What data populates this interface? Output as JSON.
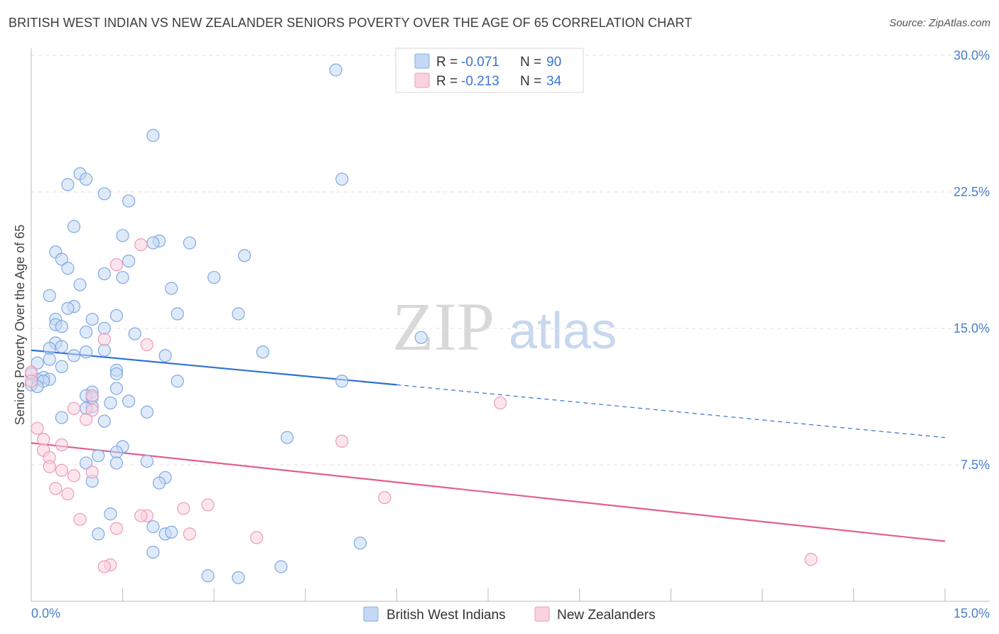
{
  "header": {
    "title": "BRITISH WEST INDIAN VS NEW ZEALANDER SENIORS POVERTY OVER THE AGE OF 65 CORRELATION CHART",
    "source": "Source: ZipAtlas.com"
  },
  "watermark": {
    "zip": "ZIP",
    "atlas": "atlas"
  },
  "chart_data": {
    "type": "scatter",
    "ylabel": "Seniors Poverty Over the Age of 65",
    "xlim": [
      0,
      15
    ],
    "ylim": [
      0,
      30
    ],
    "x_tick_labels": [
      "0.0%",
      "15.0%"
    ],
    "y_ticks": [
      7.5,
      15.0,
      22.5,
      30.0
    ],
    "y_tick_labels": [
      "7.5%",
      "15.0%",
      "22.5%",
      "30.0%"
    ],
    "stats": [
      {
        "r_label": "R =",
        "r": "-0.071",
        "n_label": "N =",
        "n": "90"
      },
      {
        "r_label": "R =",
        "r": "-0.213",
        "n_label": "N =",
        "n": "34"
      }
    ],
    "series": [
      {
        "name": "British West Indians",
        "color": "#7fa9e3",
        "fill": "#c5d9f4",
        "line_color": "#2f72d0",
        "trend": {
          "x0": 0,
          "y0": 13.8,
          "x1": 6,
          "y1": 11.9,
          "dash_x1": 15,
          "dash_y1": 9.0
        },
        "points": [
          [
            5.0,
            29.2
          ],
          [
            2.0,
            25.6
          ],
          [
            0.8,
            23.5
          ],
          [
            0.6,
            22.9
          ],
          [
            0.9,
            23.2
          ],
          [
            5.1,
            23.2
          ],
          [
            1.2,
            22.4
          ],
          [
            1.6,
            22.0
          ],
          [
            0.7,
            20.6
          ],
          [
            1.5,
            20.1
          ],
          [
            2.1,
            19.8
          ],
          [
            2.0,
            19.7
          ],
          [
            2.6,
            19.7
          ],
          [
            0.4,
            19.2
          ],
          [
            0.5,
            18.8
          ],
          [
            3.5,
            19.0
          ],
          [
            1.6,
            18.7
          ],
          [
            0.6,
            18.3
          ],
          [
            1.2,
            18.0
          ],
          [
            1.5,
            17.8
          ],
          [
            3.0,
            17.8
          ],
          [
            0.8,
            17.4
          ],
          [
            2.3,
            17.2
          ],
          [
            0.3,
            16.8
          ],
          [
            0.7,
            16.2
          ],
          [
            0.6,
            16.1
          ],
          [
            3.4,
            15.8
          ],
          [
            2.4,
            15.8
          ],
          [
            1.4,
            15.7
          ],
          [
            1.0,
            15.5
          ],
          [
            0.4,
            15.5
          ],
          [
            0.4,
            15.2
          ],
          [
            0.5,
            15.1
          ],
          [
            1.2,
            15.0
          ],
          [
            0.9,
            14.8
          ],
          [
            1.7,
            14.7
          ],
          [
            6.4,
            14.5
          ],
          [
            0.4,
            14.2
          ],
          [
            0.5,
            14.0
          ],
          [
            0.3,
            13.9
          ],
          [
            0.9,
            13.7
          ],
          [
            1.2,
            13.8
          ],
          [
            3.8,
            13.7
          ],
          [
            0.7,
            13.5
          ],
          [
            2.2,
            13.5
          ],
          [
            0.3,
            13.3
          ],
          [
            0.1,
            13.1
          ],
          [
            0.5,
            12.9
          ],
          [
            1.4,
            12.7
          ],
          [
            0.0,
            12.5
          ],
          [
            0.2,
            12.3
          ],
          [
            0.1,
            12.2
          ],
          [
            0.3,
            12.2
          ],
          [
            0.2,
            12.1
          ],
          [
            2.4,
            12.1
          ],
          [
            5.1,
            12.1
          ],
          [
            0.0,
            11.9
          ],
          [
            0.1,
            11.8
          ],
          [
            1.4,
            11.7
          ],
          [
            1.0,
            11.5
          ],
          [
            0.9,
            11.3
          ],
          [
            1.0,
            11.2
          ],
          [
            1.6,
            11.0
          ],
          [
            1.3,
            10.9
          ],
          [
            1.0,
            10.7
          ],
          [
            0.9,
            10.6
          ],
          [
            1.9,
            10.4
          ],
          [
            0.5,
            10.1
          ],
          [
            1.2,
            9.9
          ],
          [
            4.2,
            9.0
          ],
          [
            1.5,
            8.5
          ],
          [
            1.4,
            8.2
          ],
          [
            1.1,
            8.0
          ],
          [
            0.9,
            7.6
          ],
          [
            1.4,
            7.6
          ],
          [
            1.9,
            7.7
          ],
          [
            2.2,
            6.8
          ],
          [
            1.0,
            6.6
          ],
          [
            2.1,
            6.5
          ],
          [
            1.3,
            4.8
          ],
          [
            2.0,
            4.1
          ],
          [
            1.1,
            3.7
          ],
          [
            2.2,
            3.7
          ],
          [
            2.3,
            3.8
          ],
          [
            5.4,
            3.2
          ],
          [
            2.0,
            2.7
          ],
          [
            4.1,
            1.9
          ],
          [
            3.4,
            1.3
          ],
          [
            2.9,
            1.4
          ],
          [
            1.4,
            12.5
          ]
        ]
      },
      {
        "name": "New Zealanders",
        "color": "#ef9ab8",
        "fill": "#f9d2e0",
        "line_color": "#e0608f",
        "trend": {
          "x0": 0,
          "y0": 8.7,
          "x1": 15,
          "y1": 3.3
        },
        "points": [
          [
            1.8,
            19.6
          ],
          [
            1.4,
            18.5
          ],
          [
            1.2,
            14.4
          ],
          [
            1.9,
            14.1
          ],
          [
            0.0,
            12.6
          ],
          [
            0.0,
            12.1
          ],
          [
            1.0,
            11.3
          ],
          [
            7.7,
            10.9
          ],
          [
            0.7,
            10.6
          ],
          [
            1.0,
            10.5
          ],
          [
            0.9,
            10.0
          ],
          [
            0.1,
            9.5
          ],
          [
            0.2,
            8.9
          ],
          [
            5.1,
            8.8
          ],
          [
            0.5,
            8.6
          ],
          [
            0.2,
            8.3
          ],
          [
            0.3,
            7.9
          ],
          [
            0.3,
            7.4
          ],
          [
            0.5,
            7.2
          ],
          [
            0.7,
            6.9
          ],
          [
            1.0,
            7.1
          ],
          [
            0.4,
            6.2
          ],
          [
            0.6,
            5.9
          ],
          [
            5.8,
            5.7
          ],
          [
            2.9,
            5.3
          ],
          [
            2.5,
            5.1
          ],
          [
            1.9,
            4.7
          ],
          [
            1.8,
            4.7
          ],
          [
            0.8,
            4.5
          ],
          [
            1.4,
            4.0
          ],
          [
            2.6,
            3.7
          ],
          [
            3.7,
            3.5
          ],
          [
            1.3,
            2.0
          ],
          [
            1.2,
            1.9
          ]
        ]
      }
    ],
    "extra_nz_points": [
      [
        12.8,
        2.3
      ]
    ]
  }
}
